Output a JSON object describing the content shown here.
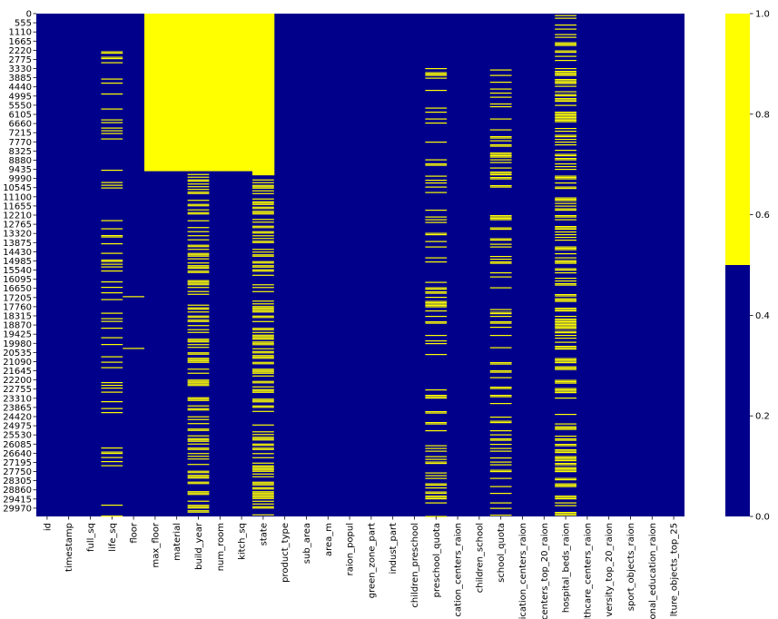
{
  "chart_data": {
    "type": "heatmap",
    "title": "",
    "xlabel": "",
    "ylabel": "",
    "colors": {
      "missing": "#ffff00",
      "present": "#00008b"
    },
    "colorbar": {
      "range": [
        0.0,
        1.0
      ],
      "ticks": [
        "0.0",
        "0.2",
        "0.4",
        "0.6",
        "0.8",
        "1.0"
      ]
    },
    "row_count": 30471,
    "y_tick_labels": [
      "0",
      "555",
      "1110",
      "1665",
      "2220",
      "2775",
      "3330",
      "3885",
      "4440",
      "4995",
      "5550",
      "6105",
      "6660",
      "7215",
      "7770",
      "8325",
      "8880",
      "9435",
      "9990",
      "10545",
      "11100",
      "11655",
      "12210",
      "12765",
      "13320",
      "13875",
      "14430",
      "14985",
      "15540",
      "16095",
      "16650",
      "17205",
      "17760",
      "18315",
      "18870",
      "19425",
      "19980",
      "20535",
      "21090",
      "21645",
      "22200",
      "22755",
      "23310",
      "23865",
      "24420",
      "24975",
      "25530",
      "26085",
      "26640",
      "27195",
      "27750",
      "28305",
      "28860",
      "29415",
      "29970"
    ],
    "columns": [
      "id",
      "timestamp",
      "full_sq",
      "life_sq",
      "floor",
      "max_floor",
      "material",
      "build_year",
      "num_room",
      "kitch_sq",
      "state",
      "product_type",
      "sub_area",
      "area_m",
      "raion_popul",
      "green_zone_part",
      "indust_part",
      "children_preschool",
      "preschool_quota",
      "cation_centers_raion",
      "children_school",
      "school_quota",
      "ication_centers_raion",
      "centers_top_20_raion",
      "hospital_beds_raion",
      "lthcare_centers_raion",
      "versity_top_20_raion",
      "sport_objects_raion",
      "onal_education_raion",
      "lture_objects_top_25"
    ],
    "missing_blocks": [
      {
        "column": "max_floor",
        "from_row": 0,
        "to_row": 9550
      },
      {
        "column": "material",
        "from_row": 0,
        "to_row": 9550
      },
      {
        "column": "build_year",
        "from_row": 0,
        "to_row": 9550
      },
      {
        "column": "num_room",
        "from_row": 0,
        "to_row": 9550
      },
      {
        "column": "kitch_sq",
        "from_row": 0,
        "to_row": 9550
      },
      {
        "column": "state",
        "from_row": 0,
        "to_row": 9800
      }
    ],
    "missing_density": {
      "life_sq": 0.21,
      "floor": 0.01,
      "build_year": 0.45,
      "state": 0.44,
      "preschool_quota": 0.22,
      "school_quota": 0.22,
      "hospital_beds_raion": 0.47
    },
    "missing_after_row": {
      "life_sq": 2200,
      "floor": 2600,
      "build_year": 9550,
      "state": 9800,
      "preschool_quota": 3300,
      "school_quota": 3300,
      "hospital_beds_raion": 0
    }
  }
}
